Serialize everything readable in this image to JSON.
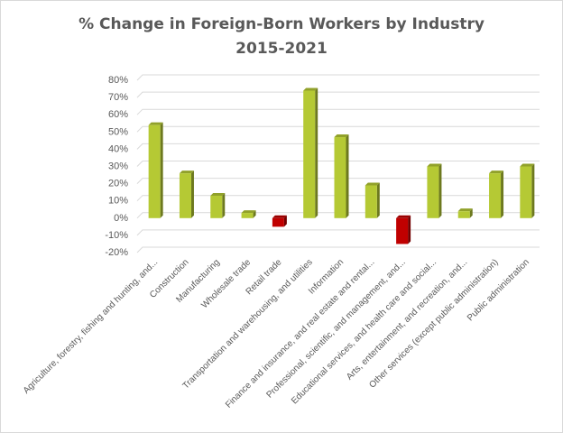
{
  "chart_data": {
    "type": "bar",
    "title_line1": "% Change  in Foreign-Born  Workers  by  Industry",
    "title_line2": "2015-2021",
    "categories": [
      "Agriculture, forestry, fishing and hunting, and...",
      "Construction",
      "Manufacturing",
      "Wholesale trade",
      "Retail trade",
      "Transportation and warehousing, and utilities",
      "Information",
      "Finance and insurance, and real estate and rental...",
      "Professional, scientific, and management, and...",
      "Educational services, and health care and social...",
      "Arts, entertainment, and recreation, and...",
      "Other services (except public administration)",
      "Public administration"
    ],
    "values": [
      54,
      26,
      13,
      3,
      -5,
      74,
      47,
      19,
      -15,
      30,
      4,
      26,
      30
    ],
    "yticks": [
      "80%",
      "70%",
      "60%",
      "50%",
      "40%",
      "30%",
      "20%",
      "10%",
      "0%",
      "-10%",
      "-20%"
    ],
    "ylim": [
      -20,
      80
    ],
    "grid": true,
    "colors": {
      "positive": "#b5c934",
      "negative": "#c00000",
      "grid": "#d9d9d9",
      "text": "#595959"
    }
  }
}
